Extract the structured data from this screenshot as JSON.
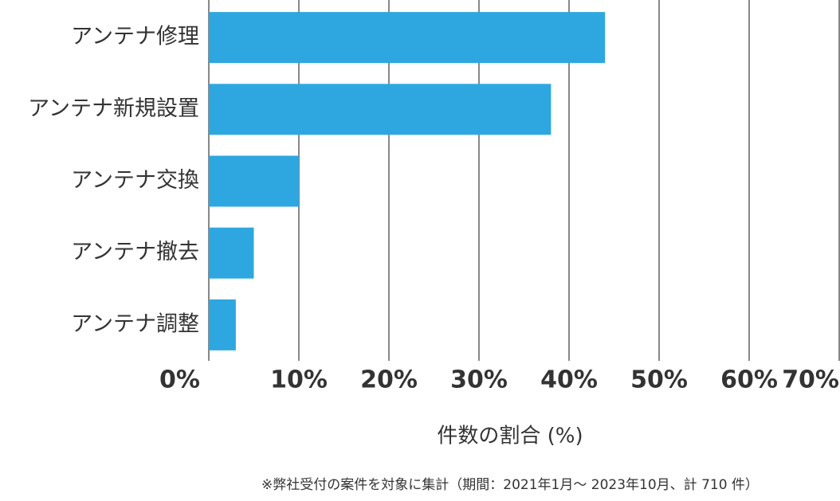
{
  "chart_data": {
    "type": "barh",
    "categories": [
      "アンテナ修理",
      "アンテナ新規設置",
      "アンテナ交換",
      "アンテナ撤去",
      "アンテナ調整"
    ],
    "values": [
      44,
      38,
      10,
      5,
      3
    ],
    "color": "#2ea7e0",
    "xlim": [
      0,
      70
    ],
    "xticks": [
      {
        "value": 0,
        "label": "0%"
      },
      {
        "value": 10,
        "label": "10%"
      },
      {
        "value": 20,
        "label": "20%"
      },
      {
        "value": 30,
        "label": "30%"
      },
      {
        "value": 40,
        "label": "40%"
      },
      {
        "value": 50,
        "label": "50%"
      },
      {
        "value": 60,
        "label": "60%"
      },
      {
        "value": 70,
        "label": "70%"
      }
    ],
    "grid": true,
    "xlabel": "件数の割合 (%)",
    "note": "※弊社受付の案件を対象に集計（期間：2021年1月～ 2023年10月、計 710 件）"
  }
}
